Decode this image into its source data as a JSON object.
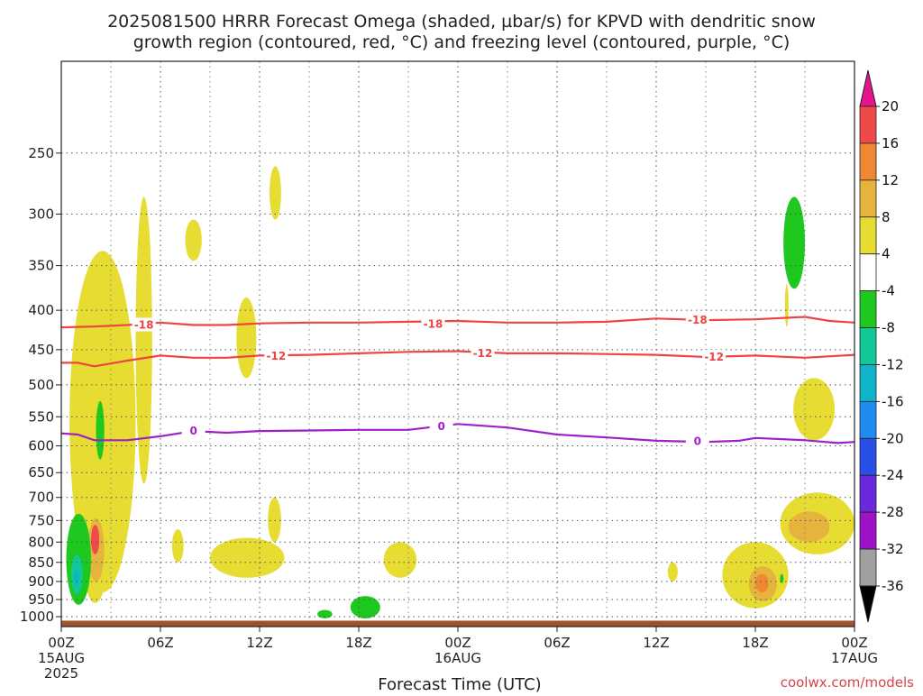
{
  "chart_data": {
    "type": "heatmap",
    "title_line1": "2025081500 HRRR Forecast Omega (shaded, µbar/s) for KPVD with dendritic snow",
    "title_line2": "growth region (contoured, red, °C) and freezing level (contoured, purple, °C)",
    "xlabel": "Forecast Time (UTC)",
    "ylabel": "",
    "y_scale": "log-pressure (hPa), inverted",
    "ylim": [
      1030,
      190
    ],
    "xlim": [
      0,
      48
    ],
    "grid": true,
    "y_ticks": [
      250,
      300,
      350,
      400,
      450,
      500,
      550,
      600,
      650,
      700,
      750,
      800,
      850,
      900,
      950,
      1000
    ],
    "x_ticks": [
      {
        "h": 0,
        "label": "00Z",
        "sub1": "15AUG",
        "sub2": "2025"
      },
      {
        "h": 6,
        "label": "06Z",
        "sub1": "",
        "sub2": ""
      },
      {
        "h": 12,
        "label": "12Z",
        "sub1": "",
        "sub2": ""
      },
      {
        "h": 18,
        "label": "18Z",
        "sub1": "",
        "sub2": ""
      },
      {
        "h": 24,
        "label": "00Z",
        "sub1": "16AUG",
        "sub2": ""
      },
      {
        "h": 30,
        "label": "06Z",
        "sub1": "",
        "sub2": ""
      },
      {
        "h": 36,
        "label": "12Z",
        "sub1": "",
        "sub2": ""
      },
      {
        "h": 42,
        "label": "18Z",
        "sub1": "",
        "sub2": ""
      },
      {
        "h": 48,
        "label": "00Z",
        "sub1": "17AUG",
        "sub2": ""
      }
    ],
    "colorbar": {
      "bins": [
        {
          "lo": 20,
          "hi": null,
          "color": "#e6148c"
        },
        {
          "lo": 16,
          "hi": 20,
          "color": "#ef4a4a"
        },
        {
          "lo": 12,
          "hi": 16,
          "color": "#ee8833"
        },
        {
          "lo": 8,
          "hi": 12,
          "color": "#e6b43c"
        },
        {
          "lo": 4,
          "hi": 8,
          "color": "#e6dc32"
        },
        {
          "lo": -4,
          "hi": 4,
          "color": "#ffffff"
        },
        {
          "lo": -8,
          "hi": -4,
          "color": "#1ec81e"
        },
        {
          "lo": -12,
          "hi": -8,
          "color": "#10c898"
        },
        {
          "lo": -16,
          "hi": -12,
          "color": "#10b4c8"
        },
        {
          "lo": -20,
          "hi": -16,
          "color": "#1e8cf0"
        },
        {
          "lo": -24,
          "hi": -20,
          "color": "#2850e6"
        },
        {
          "lo": -28,
          "hi": -24,
          "color": "#6a2adc"
        },
        {
          "lo": -32,
          "hi": -28,
          "color": "#a012c8"
        },
        {
          "lo": -36,
          "hi": -32,
          "color": "#a0a0a0"
        },
        {
          "lo": null,
          "hi": -36,
          "color": "#000000"
        }
      ],
      "tick_labels": [
        "20",
        "16",
        "12",
        "8",
        "4",
        "-4",
        "-8",
        "-12",
        "-16",
        "-20",
        "-24",
        "-28",
        "-32",
        "-36"
      ]
    },
    "contours": [
      {
        "name": "-18",
        "color": "#ee4444",
        "points": [
          [
            0,
            421
          ],
          [
            2,
            420
          ],
          [
            4,
            418
          ],
          [
            6,
            415
          ],
          [
            8,
            418
          ],
          [
            10,
            418
          ],
          [
            12,
            416
          ],
          [
            15,
            415
          ],
          [
            18,
            415
          ],
          [
            21,
            414
          ],
          [
            24,
            413
          ],
          [
            27,
            415
          ],
          [
            30,
            415
          ],
          [
            33,
            414
          ],
          [
            36,
            410
          ],
          [
            39,
            412
          ],
          [
            42,
            411
          ],
          [
            45,
            408
          ],
          [
            46.5,
            413
          ],
          [
            48,
            415
          ]
        ],
        "labels": [
          [
            5,
            418
          ],
          [
            22.5,
            417
          ],
          [
            38.5,
            412
          ]
        ]
      },
      {
        "name": "-12",
        "color": "#ee4444",
        "points": [
          [
            0,
            468
          ],
          [
            1,
            468
          ],
          [
            2,
            473
          ],
          [
            4,
            465
          ],
          [
            6,
            458
          ],
          [
            8,
            461
          ],
          [
            10,
            461
          ],
          [
            12,
            458
          ],
          [
            15,
            457
          ],
          [
            18,
            455
          ],
          [
            21,
            453
          ],
          [
            24,
            452
          ],
          [
            27,
            455
          ],
          [
            30,
            455
          ],
          [
            33,
            456
          ],
          [
            36,
            457
          ],
          [
            39,
            460
          ],
          [
            42,
            458
          ],
          [
            45,
            461
          ],
          [
            48,
            457
          ]
        ],
        "labels": [
          [
            13,
            459
          ],
          [
            25.5,
            455
          ],
          [
            39.5,
            460
          ]
        ]
      },
      {
        "name": "0",
        "color": "#a020c8",
        "points": [
          [
            0,
            578
          ],
          [
            1,
            580
          ],
          [
            2,
            590
          ],
          [
            4,
            590
          ],
          [
            6,
            583
          ],
          [
            8,
            574
          ],
          [
            10,
            577
          ],
          [
            12,
            574
          ],
          [
            15,
            573
          ],
          [
            18,
            572
          ],
          [
            21,
            572
          ],
          [
            24,
            562
          ],
          [
            27,
            568
          ],
          [
            30,
            580
          ],
          [
            33,
            585
          ],
          [
            36,
            591
          ],
          [
            39,
            593
          ],
          [
            41,
            591
          ],
          [
            42,
            586
          ],
          [
            45,
            590
          ],
          [
            47,
            595
          ],
          [
            48,
            593
          ]
        ],
        "labels": [
          [
            8,
            574
          ],
          [
            23,
            566
          ],
          [
            38.5,
            592
          ]
        ]
      }
    ],
    "shaded_regions": [
      {
        "bin": "4 to 8",
        "color": "#e6dc32",
        "t": [
          0.5,
          4.5
        ],
        "p": [
          335,
          930
        ]
      },
      {
        "bin": "4 to 8",
        "color": "#e6dc32",
        "t": [
          4.5,
          5.5
        ],
        "p": [
          285,
          672
        ]
      },
      {
        "bin": "4 to 8",
        "color": "#e6dc32",
        "t": [
          7.5,
          8.5
        ],
        "p": [
          305,
          345
        ]
      },
      {
        "bin": "4 to 8",
        "color": "#e6dc32",
        "t": [
          12.6,
          13.3
        ],
        "p": [
          260,
          305
        ]
      },
      {
        "bin": "4 to 8",
        "color": "#e6dc32",
        "t": [
          10.6,
          11.8
        ],
        "p": [
          385,
          490
        ]
      },
      {
        "bin": "4 to 8",
        "color": "#e6dc32",
        "t": [
          1.3,
          2.8
        ],
        "p": [
          720,
          960
        ]
      },
      {
        "bin": "8 to 12",
        "color": "#e6b43c",
        "t": [
          1.6,
          2.6
        ],
        "p": [
          745,
          900
        ]
      },
      {
        "bin": "16 to 20",
        "color": "#ef4a4a",
        "t": [
          1.8,
          2.3
        ],
        "p": [
          760,
          830
        ]
      },
      {
        "bin": "4 to 8",
        "color": "#e6dc32",
        "t": [
          6.7,
          7.4
        ],
        "p": [
          770,
          850
        ]
      },
      {
        "bin": "4 to 8",
        "color": "#e6dc32",
        "t": [
          9,
          13.5
        ],
        "p": [
          790,
          890
        ]
      },
      {
        "bin": "4 to 8",
        "color": "#e6dc32",
        "t": [
          12.5,
          13.3
        ],
        "p": [
          700,
          800
        ]
      },
      {
        "bin": "4 to 8",
        "color": "#e6dc32",
        "t": [
          19.5,
          21.5
        ],
        "p": [
          800,
          890
        ]
      },
      {
        "bin": "4 to 8",
        "color": "#e6dc32",
        "t": [
          36.7,
          37.3
        ],
        "p": [
          850,
          900
        ]
      },
      {
        "bin": "4 to 8",
        "color": "#e6dc32",
        "t": [
          40,
          44
        ],
        "p": [
          800,
          975
        ]
      },
      {
        "bin": "8 to 12",
        "color": "#e6b43c",
        "t": [
          41.6,
          43.3
        ],
        "p": [
          860,
          955
        ]
      },
      {
        "bin": "12 to 16",
        "color": "#ee8833",
        "t": [
          42,
          42.8
        ],
        "p": [
          880,
          930
        ]
      },
      {
        "bin": "4 to 8",
        "color": "#e6dc32",
        "t": [
          43.5,
          48
        ],
        "p": [
          690,
          830
        ]
      },
      {
        "bin": "8 to 12",
        "color": "#e6b43c",
        "t": [
          44,
          46.5
        ],
        "p": [
          730,
          800
        ]
      },
      {
        "bin": "4 to 8",
        "color": "#e6dc32",
        "t": [
          44.3,
          46.8
        ],
        "p": [
          490,
          590
        ]
      },
      {
        "bin": "4 to 8",
        "color": "#e6dc32",
        "t": [
          43.8,
          44
        ],
        "p": [
          370,
          420
        ]
      },
      {
        "bin": "-8 to -4",
        "color": "#1ec81e",
        "t": [
          2.1,
          2.6
        ],
        "p": [
          525,
          625
        ]
      },
      {
        "bin": "-8 to -4",
        "color": "#1ec81e",
        "t": [
          0.3,
          1.8
        ],
        "p": [
          735,
          965
        ]
      },
      {
        "bin": "-12 to -8",
        "color": "#10c898",
        "t": [
          0.6,
          1.3
        ],
        "p": [
          830,
          935
        ]
      },
      {
        "bin": "-16 to -12",
        "color": "#10b4c8",
        "t": [
          0.75,
          1.05
        ],
        "p": [
          870,
          910
        ]
      },
      {
        "bin": "-8 to -4",
        "color": "#1ec81e",
        "t": [
          15.5,
          16.4
        ],
        "p": [
          980,
          1005
        ]
      },
      {
        "bin": "-8 to -4",
        "color": "#1ec81e",
        "t": [
          17.5,
          19.3
        ],
        "p": [
          940,
          1005
        ]
      },
      {
        "bin": "-8 to -4",
        "color": "#1ec81e",
        "t": [
          43.7,
          45
        ],
        "p": [
          285,
          375
        ]
      },
      {
        "bin": "-8 to -4",
        "color": "#1ec81e",
        "t": [
          43.5,
          43.7
        ],
        "p": [
          880,
          905
        ]
      }
    ],
    "terrain_color": "#a0522d"
  },
  "credit": "coolwx.com/models"
}
